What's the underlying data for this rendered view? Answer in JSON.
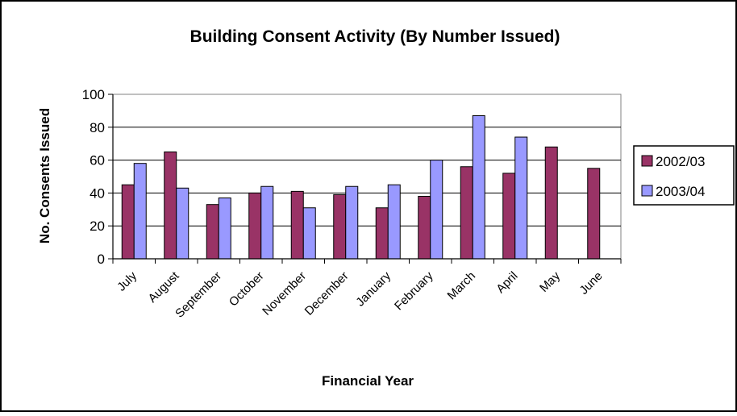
{
  "chart_data": {
    "type": "bar",
    "title": "Building Consent Activity (By Number Issued)",
    "xlabel": "Financial Year",
    "ylabel": "No. Consents Issued",
    "categories": [
      "July",
      "August",
      "September",
      "October",
      "November",
      "December",
      "January",
      "February",
      "March",
      "April",
      "May",
      "June"
    ],
    "series": [
      {
        "name": "2002/03",
        "color": "#993366",
        "values": [
          45,
          65,
          33,
          40,
          41,
          39,
          31,
          38,
          56,
          52,
          68,
          55
        ]
      },
      {
        "name": "2003/04",
        "color": "#9999ff",
        "values": [
          58,
          43,
          37,
          44,
          31,
          44,
          45,
          60,
          87,
          74,
          null,
          null
        ]
      }
    ],
    "ylim": [
      0,
      100
    ],
    "yticks": [
      0,
      20,
      40,
      60,
      80,
      100
    ],
    "grid": true,
    "legend_position": "right"
  }
}
